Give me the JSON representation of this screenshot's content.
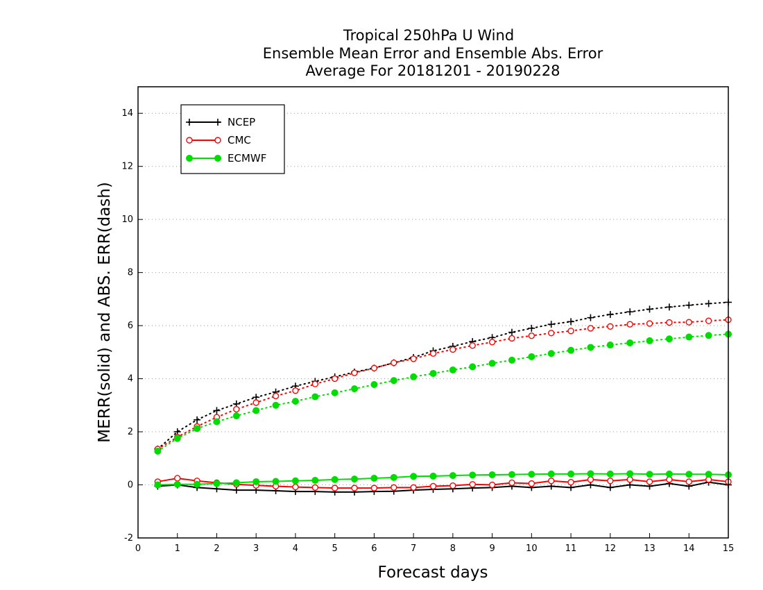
{
  "chart_data": {
    "type": "line",
    "title_lines": [
      "Tropical 250hPa U Wind",
      "Ensemble Mean Error and Ensemble Abs. Error",
      "Average For 20181201 - 20190228"
    ],
    "xlabel": "Forecast days",
    "ylabel": "MERR(solid) and ABS. ERR(dash)",
    "xlim": [
      0,
      15
    ],
    "ylim": [
      -2,
      15
    ],
    "x_ticks": [
      "0",
      "1",
      "2",
      "3",
      "4",
      "5",
      "6",
      "7",
      "8",
      "9",
      "10",
      "11",
      "12",
      "13",
      "14",
      "15"
    ],
    "y_ticks": [
      "-2",
      "0",
      "2",
      "4",
      "6",
      "8",
      "10",
      "12",
      "14"
    ],
    "grid": "horizontal-dotted",
    "legend_position": "top-left",
    "x": [
      0.5,
      1,
      1.5,
      2,
      2.5,
      3,
      3.5,
      4,
      4.5,
      5,
      5.5,
      6,
      6.5,
      7,
      7.5,
      8,
      8.5,
      9,
      9.5,
      10,
      10.5,
      11,
      11.5,
      12,
      12.5,
      13,
      13.5,
      14,
      14.5,
      15
    ],
    "series": [
      {
        "name": "NCEP",
        "color": "#000000",
        "marker": "plus",
        "mean_error": [
          -0.05,
          0.0,
          -0.1,
          -0.15,
          -0.2,
          -0.2,
          -0.22,
          -0.25,
          -0.25,
          -0.27,
          -0.27,
          -0.25,
          -0.24,
          -0.2,
          -0.17,
          -0.15,
          -0.12,
          -0.1,
          -0.05,
          -0.1,
          -0.05,
          -0.1,
          0.0,
          -0.1,
          0.0,
          -0.05,
          0.05,
          -0.05,
          0.1,
          0.0
        ],
        "abs_error": [
          1.35,
          2.0,
          2.45,
          2.8,
          3.05,
          3.3,
          3.5,
          3.72,
          3.9,
          4.07,
          4.25,
          4.4,
          4.6,
          4.8,
          5.05,
          5.22,
          5.4,
          5.55,
          5.75,
          5.9,
          6.05,
          6.15,
          6.3,
          6.42,
          6.52,
          6.62,
          6.7,
          6.77,
          6.83,
          6.88
        ]
      },
      {
        "name": "CMC",
        "color": "#ff0000",
        "marker": "open-circle",
        "mean_error": [
          0.12,
          0.25,
          0.15,
          0.08,
          0.02,
          -0.02,
          -0.05,
          -0.08,
          -0.1,
          -0.12,
          -0.12,
          -0.12,
          -0.1,
          -0.1,
          -0.05,
          -0.03,
          0.02,
          0.0,
          0.08,
          0.05,
          0.15,
          0.1,
          0.2,
          0.15,
          0.2,
          0.12,
          0.2,
          0.12,
          0.2,
          0.12
        ],
        "abs_error": [
          1.35,
          1.8,
          2.2,
          2.55,
          2.85,
          3.1,
          3.35,
          3.55,
          3.8,
          4.0,
          4.22,
          4.4,
          4.6,
          4.75,
          4.95,
          5.1,
          5.25,
          5.38,
          5.52,
          5.62,
          5.72,
          5.8,
          5.9,
          5.97,
          6.05,
          6.08,
          6.12,
          6.13,
          6.18,
          6.22
        ]
      },
      {
        "name": "ECMWF",
        "color": "#00dd00",
        "marker": "filled-circle",
        "mean_error": [
          0.0,
          0.02,
          0.02,
          0.05,
          0.08,
          0.12,
          0.13,
          0.15,
          0.17,
          0.2,
          0.22,
          0.25,
          0.28,
          0.32,
          0.33,
          0.35,
          0.37,
          0.38,
          0.39,
          0.4,
          0.41,
          0.41,
          0.42,
          0.41,
          0.42,
          0.4,
          0.41,
          0.4,
          0.4,
          0.38
        ],
        "abs_error": [
          1.27,
          1.75,
          2.12,
          2.38,
          2.6,
          2.8,
          3.0,
          3.15,
          3.32,
          3.47,
          3.62,
          3.78,
          3.93,
          4.07,
          4.2,
          4.33,
          4.45,
          4.58,
          4.7,
          4.83,
          4.95,
          5.07,
          5.18,
          5.27,
          5.35,
          5.43,
          5.5,
          5.57,
          5.63,
          5.68
        ]
      }
    ]
  }
}
